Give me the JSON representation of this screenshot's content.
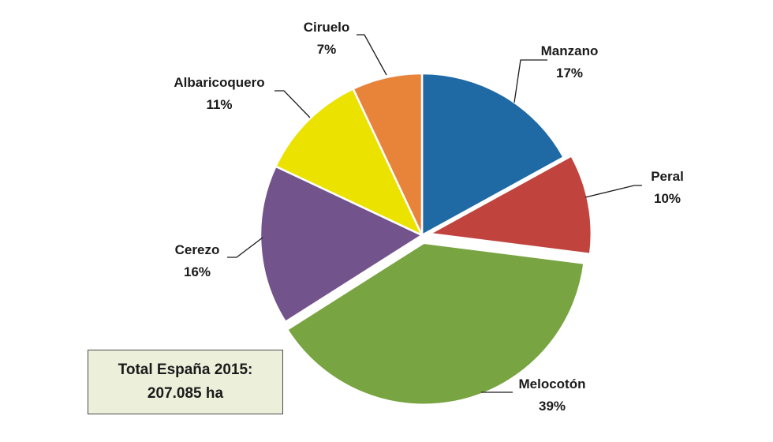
{
  "chart_data": {
    "type": "pie",
    "slices": [
      {
        "label": "Manzano",
        "value": 17,
        "value_label": "17%",
        "color": "#1f6aa5"
      },
      {
        "label": "Peral",
        "value": 10,
        "value_label": "10%",
        "color": "#c0433e"
      },
      {
        "label": "Melocotón",
        "value": 39,
        "value_label": "39%",
        "color": "#79a442"
      },
      {
        "label": "Cerezo",
        "value": 16,
        "value_label": "16%",
        "color": "#73538c"
      },
      {
        "label": "Albaricoquero",
        "value": 11,
        "value_label": "11%",
        "color": "#ece200"
      },
      {
        "label": "Ciruelo",
        "value": 7,
        "value_label": "7%",
        "color": "#e8843a"
      }
    ],
    "exploded": [
      "Peral",
      "Melocotón"
    ],
    "legend": "none"
  },
  "total_box": {
    "line1": "Total  España 2015:",
    "line2": "207.085 ha"
  }
}
